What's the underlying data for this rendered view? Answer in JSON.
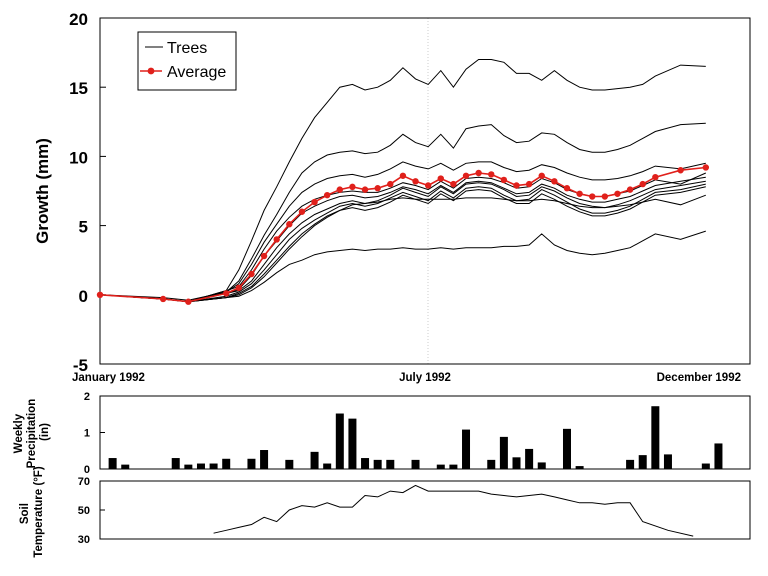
{
  "chart_data": [
    {
      "type": "line",
      "panel": "growth",
      "ylabel": "Growth (mm)",
      "ylim": [
        -5,
        20
      ],
      "yticks": [
        "-5",
        "0",
        "5",
        "10",
        "15",
        "20"
      ],
      "xtick_labels": [
        "January 1992",
        "July 1992",
        "December 1992"
      ],
      "legend": {
        "position": "top-left",
        "entries": [
          "Trees",
          "Average"
        ]
      },
      "colors": {
        "trees": "#000000",
        "average": "#e0201b"
      },
      "x": [
        1,
        6,
        8,
        11,
        12,
        13,
        14,
        15,
        16,
        17,
        18,
        19,
        20,
        21,
        22,
        23,
        24,
        25,
        26,
        27,
        28,
        29,
        30,
        31,
        32,
        33,
        34,
        35,
        36,
        37,
        38,
        39,
        40,
        41,
        42,
        43,
        44,
        45,
        47,
        49
      ],
      "series": [
        {
          "name": "Trees",
          "values": [
            0,
            -0.3,
            -0.5,
            0.3,
            1.8,
            3.9,
            6.1,
            7.8,
            9.6,
            11.3,
            12.8,
            13.9,
            15.0,
            15.2,
            14.8,
            15.0,
            15.5,
            16.4,
            15.6,
            15.2,
            16.2,
            15.0,
            16.3,
            17.0,
            17.0,
            16.8,
            16.0,
            16.0,
            15.5,
            16.2,
            15.5,
            15.0,
            14.8,
            14.8,
            14.9,
            15.0,
            15.2,
            15.8,
            16.6,
            16.5
          ]
        },
        {
          "name": "Trees",
          "values": [
            0,
            -0.3,
            -0.5,
            0.2,
            1.0,
            2.6,
            4.3,
            5.8,
            7.4,
            8.8,
            9.6,
            10.1,
            10.3,
            10.4,
            10.2,
            10.3,
            10.8,
            11.6,
            11.0,
            10.7,
            11.6,
            10.6,
            12.0,
            12.2,
            12.3,
            11.5,
            11.0,
            11.1,
            11.7,
            11.6,
            11.0,
            10.5,
            10.3,
            10.3,
            10.5,
            10.8,
            11.3,
            11.8,
            12.3,
            12.4
          ]
        },
        {
          "name": "Trees",
          "values": [
            0,
            -0.2,
            -0.4,
            0.2,
            0.8,
            2.2,
            3.8,
            5.1,
            6.4,
            7.4,
            8.0,
            8.4,
            8.6,
            8.7,
            8.5,
            8.7,
            9.1,
            9.6,
            9.3,
            9.1,
            9.5,
            9.0,
            9.5,
            9.6,
            9.6,
            9.2,
            8.9,
            9.0,
            9.4,
            9.2,
            8.8,
            8.5,
            8.3,
            8.3,
            8.4,
            8.6,
            8.9,
            9.3,
            9.1,
            9.5
          ]
        },
        {
          "name": "Trees",
          "values": [
            0,
            -0.3,
            -0.5,
            0.3,
            0.6,
            1.8,
            3.3,
            4.6,
            5.6,
            6.4,
            6.9,
            7.2,
            7.4,
            7.5,
            7.4,
            7.4,
            7.7,
            8.1,
            7.9,
            7.6,
            8.2,
            7.7,
            8.4,
            8.5,
            8.4,
            8.1,
            7.7,
            7.8,
            8.4,
            8.1,
            7.6,
            7.3,
            7.1,
            7.1,
            7.3,
            7.5,
            7.9,
            8.3,
            8.0,
            8.8
          ]
        },
        {
          "name": "Trees",
          "values": [
            0,
            -0.3,
            -0.5,
            0.1,
            0.4,
            1.4,
            2.8,
            3.9,
            5.0,
            5.9,
            6.4,
            6.8,
            7.1,
            7.2,
            7.0,
            7.1,
            7.4,
            7.8,
            7.6,
            7.3,
            7.9,
            7.4,
            8.1,
            8.2,
            8.1,
            7.7,
            7.3,
            7.4,
            8.0,
            7.7,
            7.2,
            6.9,
            6.7,
            6.7,
            6.9,
            7.1,
            7.5,
            7.9,
            8.2,
            8.5
          ]
        },
        {
          "name": "Trees",
          "values": [
            0,
            -0.3,
            -0.5,
            0.1,
            0.3,
            1.0,
            2.2,
            3.4,
            4.4,
            5.2,
            5.8,
            6.2,
            6.6,
            6.8,
            6.6,
            6.8,
            7.2,
            7.7,
            7.4,
            7.1,
            7.8,
            7.3,
            8.0,
            8.1,
            8.0,
            7.6,
            7.1,
            7.2,
            7.8,
            7.5,
            7.0,
            6.6,
            6.4,
            6.3,
            6.5,
            6.8,
            7.2,
            7.6,
            7.9,
            8.2
          ]
        },
        {
          "name": "Trees",
          "values": [
            0,
            -0.3,
            -0.5,
            -0.1,
            0.2,
            0.8,
            1.8,
            2.9,
            4.0,
            4.8,
            5.4,
            5.9,
            6.4,
            6.6,
            6.4,
            6.6,
            7.0,
            7.4,
            7.1,
            6.8,
            7.5,
            7.0,
            7.7,
            7.8,
            7.7,
            7.2,
            6.8,
            6.9,
            7.6,
            7.2,
            6.7,
            6.2,
            5.9,
            5.9,
            6.1,
            6.4,
            6.9,
            7.4,
            7.6,
            8.0
          ]
        },
        {
          "name": "Trees",
          "values": [
            0,
            -0.3,
            -0.5,
            -0.2,
            0.1,
            0.6,
            1.5,
            2.5,
            3.5,
            4.4,
            5.1,
            5.7,
            6.1,
            6.3,
            6.1,
            6.3,
            6.7,
            7.2,
            6.9,
            6.6,
            7.3,
            6.8,
            7.5,
            7.6,
            7.5,
            7.0,
            6.6,
            6.6,
            7.3,
            6.9,
            6.4,
            6.0,
            5.7,
            5.7,
            5.9,
            6.2,
            6.7,
            7.2,
            7.4,
            7.8
          ]
        },
        {
          "name": "Trees",
          "values": [
            0,
            -0.3,
            -0.5,
            -0.2,
            0.0,
            0.5,
            1.3,
            2.3,
            3.3,
            4.2,
            5.0,
            5.6,
            6.1,
            6.5,
            6.6,
            6.7,
            6.9,
            7.0,
            6.9,
            6.9,
            6.9,
            6.9,
            7.0,
            7.0,
            7.0,
            6.9,
            6.8,
            6.8,
            6.9,
            6.8,
            6.6,
            6.4,
            6.3,
            6.3,
            6.4,
            6.5,
            6.7,
            6.9,
            6.5,
            7.2
          ]
        },
        {
          "name": "Trees",
          "values": [
            0,
            -0.3,
            -0.5,
            -0.2,
            -0.1,
            0.3,
            0.9,
            1.6,
            2.2,
            2.5,
            2.9,
            3.1,
            3.2,
            3.3,
            3.2,
            3.3,
            3.3,
            3.4,
            3.3,
            3.3,
            3.4,
            3.3,
            3.4,
            3.4,
            3.4,
            3.5,
            3.5,
            3.6,
            4.4,
            3.6,
            3.2,
            3.0,
            2.9,
            3.0,
            3.2,
            3.4,
            3.9,
            4.4,
            4.0,
            4.6
          ]
        },
        {
          "name": "Average",
          "values": [
            0,
            -0.3,
            -0.5,
            0.1,
            0.5,
            1.5,
            2.8,
            4.0,
            5.1,
            6.0,
            6.7,
            7.2,
            7.6,
            7.8,
            7.6,
            7.7,
            8.0,
            8.6,
            8.2,
            7.9,
            8.4,
            8.0,
            8.6,
            8.8,
            8.7,
            8.3,
            7.9,
            8.0,
            8.6,
            8.2,
            7.7,
            7.3,
            7.1,
            7.1,
            7.3,
            7.6,
            8.0,
            8.5,
            9.0,
            9.2
          ]
        }
      ]
    },
    {
      "type": "bar",
      "panel": "precipitation",
      "ylabel": "Weekly Precipitation (in)",
      "ylim": [
        0,
        2
      ],
      "yticks": [
        "0",
        "1",
        "2"
      ],
      "x": [
        2,
        3,
        7,
        8,
        9,
        10,
        11,
        13,
        14,
        16,
        18,
        19,
        20,
        21,
        22,
        23,
        24,
        26,
        28,
        29,
        30,
        32,
        33,
        34,
        35,
        36,
        38,
        39,
        43,
        44,
        45,
        46,
        49,
        50
      ],
      "values": [
        0.3,
        0.12,
        0.3,
        0.12,
        0.15,
        0.15,
        0.28,
        0.28,
        0.52,
        0.25,
        0.47,
        0.15,
        1.52,
        1.38,
        0.3,
        0.25,
        0.25,
        0.25,
        0.12,
        0.12,
        1.08,
        0.25,
        0.88,
        0.32,
        0.55,
        0.18,
        1.1,
        0.08,
        0.25,
        0.38,
        1.72,
        0.4,
        0.15,
        0.7
      ],
      "color": "#000000"
    },
    {
      "type": "line",
      "panel": "soil-temperature",
      "ylabel": "Soil Temperature (°F)",
      "ylim": [
        30,
        70
      ],
      "yticks": [
        "30",
        "50",
        "70"
      ],
      "x": [
        10,
        11,
        12,
        13,
        14,
        15,
        16,
        17,
        18,
        19,
        20,
        21,
        22,
        23,
        24,
        25,
        26,
        27,
        28,
        29,
        30,
        31,
        32,
        33,
        34,
        35,
        36,
        37,
        38,
        39,
        40,
        41,
        42,
        43,
        44,
        46,
        48
      ],
      "values": [
        34,
        36,
        38,
        40,
        45,
        42,
        50,
        53,
        52,
        55,
        52,
        52,
        60,
        59,
        63,
        62,
        67,
        63,
        63,
        63,
        63,
        63,
        61,
        60,
        59,
        60,
        61,
        59,
        57,
        55,
        55,
        54,
        55,
        55,
        42,
        36,
        32
      ],
      "color": "#000000"
    }
  ]
}
